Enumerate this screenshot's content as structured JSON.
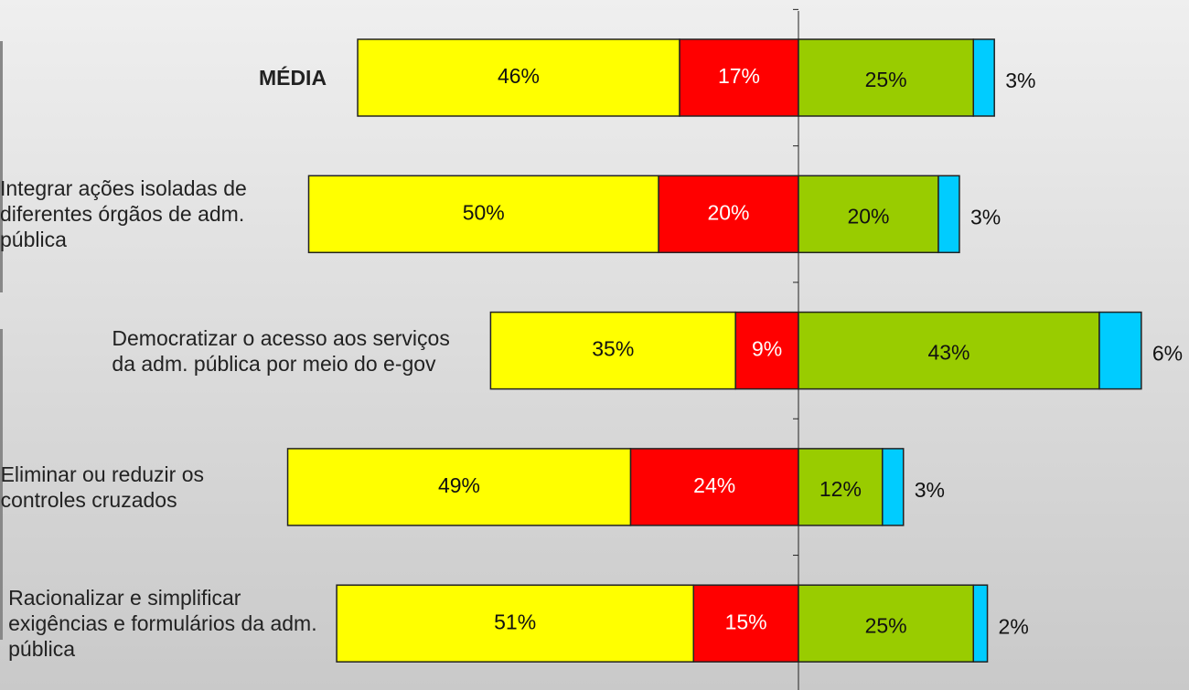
{
  "chart_data": {
    "type": "diverging-bar",
    "categories": [
      "MÉDIA",
      "Integrar ações isoladas de diferentes órgãos de adm. pública",
      "Democratizar o acesso aos serviços da adm. pública por meio do e-gov",
      "Eliminar ou reduzir os controles cruzados",
      "Racionalizar e simplificar exigências e formulários da adm. pública"
    ],
    "series": [
      {
        "color": "#ff0000",
        "side": "left",
        "values": [
          17,
          20,
          9,
          24,
          15
        ],
        "value_labels": [
          "17%",
          "20%",
          "9%",
          "24%",
          "15%"
        ]
      },
      {
        "color": "#ffff00",
        "side": "left",
        "values": [
          46,
          50,
          35,
          49,
          51
        ],
        "value_labels": [
          "46%",
          "50%",
          "35%",
          "49%",
          "51%"
        ]
      },
      {
        "color": "#99cc00",
        "side": "right",
        "values": [
          25,
          20,
          43,
          12,
          25
        ],
        "value_labels": [
          "25%",
          "20%",
          "43%",
          "12%",
          "25%"
        ]
      },
      {
        "color": "#00ccff",
        "side": "right",
        "values": [
          3,
          3,
          6,
          3,
          2
        ],
        "value_labels": [
          "3%",
          "3%",
          "6%",
          "3%",
          "2%"
        ]
      }
    ]
  }
}
